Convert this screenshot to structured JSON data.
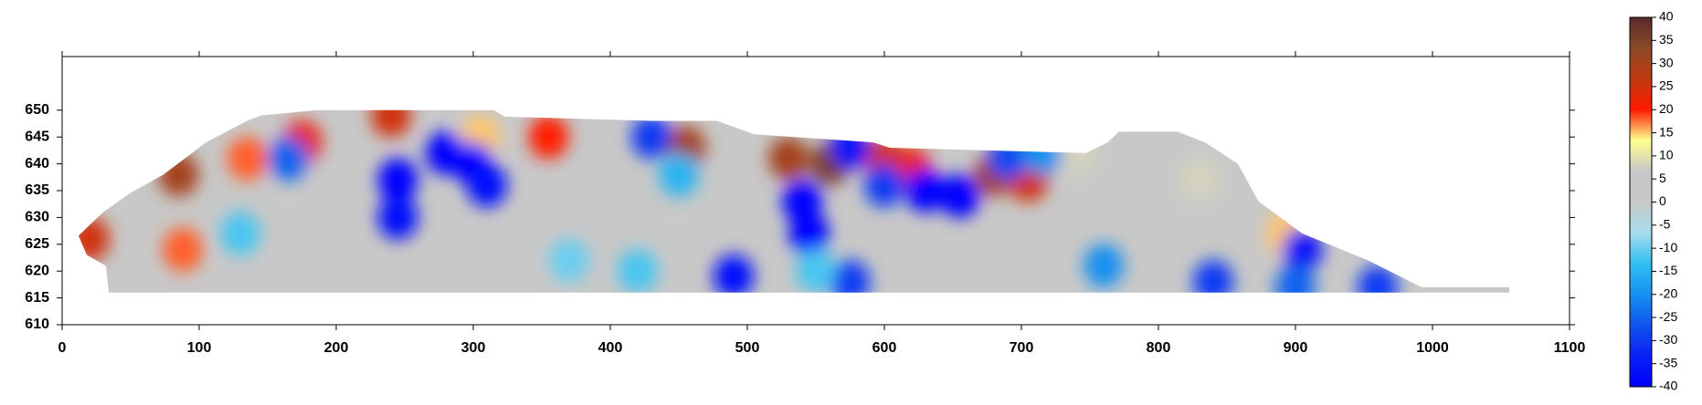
{
  "chart_data": {
    "type": "contour",
    "xlim": [
      0,
      1100
    ],
    "xticks": [
      0,
      100,
      200,
      300,
      400,
      500,
      600,
      700,
      800,
      900,
      1000,
      1100
    ],
    "ylim": [
      610,
      660
    ],
    "yticks": [
      610,
      615,
      620,
      625,
      630,
      635,
      640,
      645,
      650
    ],
    "background": "#c8c8c8",
    "outline": {
      "x": [
        12,
        30,
        50,
        74,
        105,
        135,
        145,
        186,
        315,
        323,
        430,
        478,
        505,
        592,
        604,
        747,
        763,
        771,
        814,
        834,
        858,
        873,
        905,
        953,
        992,
        1056,
        1056,
        1000,
        34,
        32,
        18
      ],
      "y": [
        626.6,
        631,
        634.6,
        638,
        644,
        648,
        649,
        650,
        650,
        648.8,
        648,
        648,
        645.5,
        644,
        643,
        642,
        644,
        646,
        646,
        644,
        640,
        633,
        627,
        622,
        617,
        617,
        616,
        616,
        616,
        621,
        623
      ]
    },
    "x": [
      20,
      85,
      88,
      135,
      175,
      240,
      355,
      305,
      455,
      530,
      560,
      600,
      620,
      680,
      705,
      893,
      830,
      740,
      165,
      245,
      245,
      280,
      300,
      310,
      430,
      450,
      490,
      540,
      545,
      575,
      575,
      630,
      655,
      600,
      690,
      715,
      905,
      840,
      900,
      960,
      760,
      130,
      420,
      370,
      550
    ],
    "y": [
      626,
      638,
      624,
      641,
      644,
      649,
      645,
      645,
      643,
      641,
      640,
      641,
      639,
      638,
      637,
      627,
      637,
      642,
      641,
      637,
      630,
      642,
      640,
      636,
      645,
      638,
      619,
      633,
      627,
      643,
      618,
      635,
      634,
      636,
      641,
      642,
      624,
      618,
      617,
      617,
      621,
      627,
      620,
      622,
      620
    ],
    "z": [
      25,
      30,
      18,
      18,
      22,
      25,
      20,
      15,
      30,
      30,
      35,
      25,
      22,
      30,
      25,
      15,
      8,
      8,
      -25,
      -40,
      -38,
      -40,
      -40,
      -38,
      -30,
      -15,
      -38,
      -40,
      -40,
      -35,
      -30,
      -40,
      -40,
      -30,
      -28,
      -20,
      -35,
      -30,
      -25,
      -30,
      -20,
      -12,
      -12,
      -10,
      -12
    ],
    "colorbar": {
      "lim": [
        -40,
        40
      ],
      "ticks": [
        -40,
        -35,
        -30,
        -25,
        -20,
        -15,
        -10,
        -5,
        0,
        5,
        10,
        15,
        20,
        25,
        30,
        35,
        40
      ],
      "colors": [
        "#0000ff",
        "#0a20f5",
        "#0f55f0",
        "#1890f0",
        "#30c0f0",
        "#a8dcee",
        "#c8c8c8",
        "#c8c8c8",
        "#ffff90",
        "#ff1a00",
        "#c03a10",
        "#8a4a28",
        "#5a2a2a"
      ]
    }
  }
}
